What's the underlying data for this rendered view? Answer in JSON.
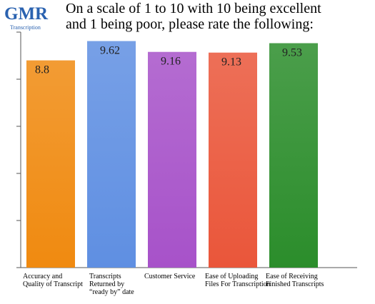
{
  "logo": {
    "name": "GMR",
    "sub": "Transcription"
  },
  "chart_data": {
    "type": "bar",
    "title": "On a scale of 1 to 10 with 10 being excellent\nand 1 being poor, please rate the following:",
    "categories": [
      "Accuracy and\nQuality of Transcript",
      "Transcripts\nReturned by\n“ready by” date",
      "Customer Service",
      "Ease of Uploading\nFiles For Transcription",
      "Ease of Receiving\nFinished Transcripts"
    ],
    "values": [
      8.8,
      9.62,
      9.16,
      9.13,
      9.53
    ],
    "colors": [
      "#f08a10",
      "#5f8fe2",
      "#a752c9",
      "#ea563a",
      "#2b8d2b"
    ],
    "ylim": [
      0,
      10
    ],
    "yticks": [
      0,
      2,
      4,
      6,
      8,
      10
    ]
  }
}
